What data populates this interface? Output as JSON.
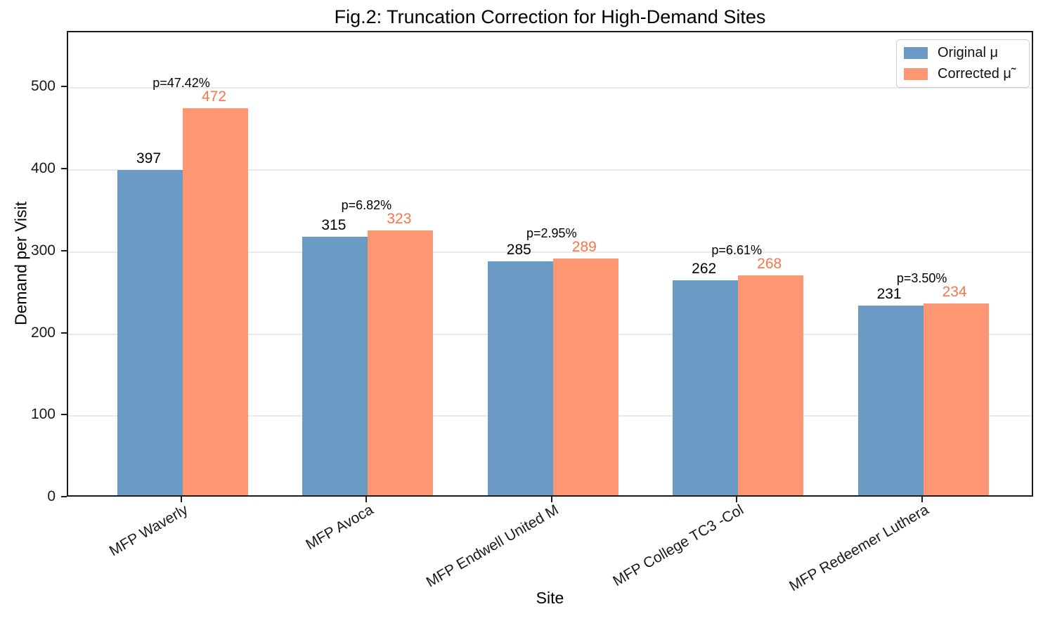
{
  "figure_title": "Fig.2: Truncation Correction for High-Demand Sites",
  "chart_data": {
    "type": "bar",
    "title": "Fig.2: Truncation Correction for High-Demand Sites",
    "xlabel": "Site",
    "ylabel": "Demand per Visit",
    "categories": [
      "MFP Waverly",
      "MFP Avoca",
      "MFP Endwell United M",
      "MFP College TC3 -Col",
      "MFP Redeemer Luthera"
    ],
    "series": [
      {
        "name": "Original μ",
        "color": "#6B9AC4",
        "label_color": "#000000",
        "values": [
          397,
          315,
          285,
          262,
          231
        ]
      },
      {
        "name": "Corrected μ̃",
        "color": "#FD9773",
        "label_color": "#F4764B",
        "values": [
          472,
          323,
          289,
          268,
          234
        ]
      }
    ],
    "p_labels": [
      "p=47.42%",
      "p=6.82%",
      "p=2.95%",
      "p=6.61%",
      "p=3.50%"
    ],
    "ylim": [
      0,
      568
    ],
    "yticks": [
      0,
      100,
      200,
      300,
      400,
      500
    ],
    "grid": true,
    "legend_position": "upper right"
  }
}
